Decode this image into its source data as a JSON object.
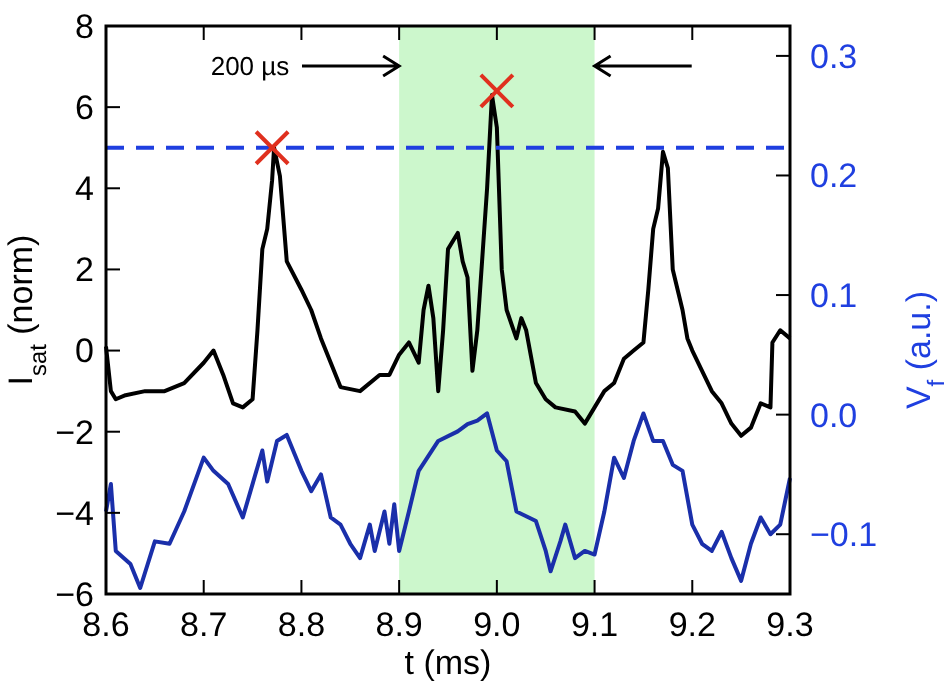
{
  "chart_data": {
    "type": "line",
    "xlabel": "t (ms)",
    "ylabel": "I$_{sat}$ (norm)",
    "y2label": "V$_{f}$ (a.u.)",
    "xlim": [
      8.6,
      9.3
    ],
    "xticks": [
      8.6,
      8.7,
      8.8,
      8.9,
      {
        "value": 9,
        "label": "9.0"
      },
      9.1,
      9.2,
      9.3
    ],
    "ylim": [
      -6,
      8
    ],
    "yticks": [
      {
        "value": -6,
        "label": "−6"
      },
      {
        "value": -4,
        "label": "−4"
      },
      {
        "value": -2,
        "label": "−2"
      },
      0,
      2,
      4,
      6,
      8
    ],
    "y2lim": [
      -0.15,
      0.325
    ],
    "y2ticks": [
      {
        "value": -0.1,
        "label": "−0.1"
      },
      {
        "value": 0,
        "label": "0.0"
      },
      0.1,
      0.2,
      0.3
    ],
    "grid": false,
    "line_style": "solid",
    "bands": [
      {
        "axis": "x",
        "from": 8.9,
        "to": 9.1,
        "color": "#ccf7cc"
      }
    ],
    "ref_lines": [
      {
        "axis": "y",
        "value": 5,
        "color": "#1f3fe0",
        "line_style": "dashed"
      }
    ],
    "annotations": [
      "200 µs"
    ],
    "series": [
      {
        "color": "#000000",
        "x": [
          8.6,
          8.605,
          8.61,
          8.62,
          8.64,
          8.66,
          8.68,
          8.7,
          8.71,
          8.72,
          8.73,
          8.74,
          8.75,
          8.755,
          8.76,
          8.765,
          8.77,
          8.772,
          8.778,
          8.785,
          8.8,
          8.81,
          8.82,
          8.83,
          8.84,
          8.86,
          8.88,
          8.89,
          8.9,
          8.91,
          8.92,
          8.925,
          8.93,
          8.935,
          8.94,
          8.945,
          8.95,
          8.96,
          8.965,
          8.97,
          8.975,
          8.98,
          8.99,
          8.995,
          9.0,
          9.005,
          9.01,
          9.02,
          9.025,
          9.03,
          9.04,
          9.05,
          9.06,
          9.08,
          9.09,
          9.1,
          9.11,
          9.12,
          9.13,
          9.14,
          9.15,
          9.155,
          9.16,
          9.165,
          9.17,
          9.175,
          9.18,
          9.19,
          9.195,
          9.2,
          9.21,
          9.22,
          9.23,
          9.24,
          9.25,
          9.26,
          9.27,
          9.28,
          9.282,
          9.29,
          9.3
        ],
        "values": [
          0.1,
          -1.0,
          -1.2,
          -1.1,
          -1.0,
          -1.0,
          -0.8,
          -0.3,
          0.0,
          -0.6,
          -1.3,
          -1.4,
          -1.2,
          0.5,
          2.5,
          3.0,
          4.2,
          5.0,
          4.3,
          2.2,
          1.5,
          1.0,
          0.3,
          -0.3,
          -0.9,
          -1.0,
          -0.6,
          -0.6,
          -0.1,
          0.2,
          -0.3,
          1.0,
          1.6,
          0.8,
          -1.0,
          0.5,
          2.5,
          2.9,
          2.2,
          1.8,
          -0.5,
          0.5,
          4.0,
          6.3,
          5.5,
          2.0,
          1.0,
          0.3,
          0.8,
          0.5,
          -0.8,
          -1.2,
          -1.4,
          -1.5,
          -1.8,
          -1.4,
          -1.0,
          -0.8,
          -0.2,
          0.0,
          0.2,
          1.5,
          3.0,
          3.5,
          4.9,
          4.5,
          2.0,
          1.0,
          0.3,
          0.0,
          -0.5,
          -1.0,
          -1.3,
          -1.8,
          -2.1,
          -1.9,
          -1.3,
          -1.4,
          0.2,
          0.5,
          0.3
        ]
      },
      {
        "color": "#1a2faa",
        "axis": "y2",
        "x": [
          8.6,
          8.605,
          8.61,
          8.625,
          8.635,
          8.65,
          8.665,
          8.68,
          8.7,
          8.71,
          8.725,
          8.74,
          8.76,
          8.765,
          8.775,
          8.785,
          8.8,
          8.81,
          8.82,
          8.83,
          8.84,
          8.85,
          8.86,
          8.87,
          8.875,
          8.885,
          8.89,
          8.895,
          8.9,
          8.91,
          8.92,
          8.94,
          8.96,
          8.97,
          8.98,
          8.99,
          9.0,
          9.01,
          9.02,
          9.04,
          9.05,
          9.055,
          9.065,
          9.07,
          9.08,
          9.09,
          9.1,
          9.11,
          9.12,
          9.13,
          9.14,
          9.15,
          9.16,
          9.17,
          9.18,
          9.19,
          9.2,
          9.21,
          9.22,
          9.23,
          9.24,
          9.25,
          9.26,
          9.27,
          9.28,
          9.29,
          9.3
        ],
        "values": [
          -0.081,
          -0.058,
          -0.114,
          -0.125,
          -0.145,
          -0.106,
          -0.108,
          -0.081,
          -0.036,
          -0.047,
          -0.058,
          -0.086,
          -0.03,
          -0.056,
          -0.022,
          -0.017,
          -0.047,
          -0.064,
          -0.05,
          -0.086,
          -0.092,
          -0.108,
          -0.12,
          -0.092,
          -0.114,
          -0.081,
          -0.108,
          -0.075,
          -0.114,
          -0.081,
          -0.047,
          -0.022,
          -0.014,
          -0.008,
          -0.005,
          0.001,
          -0.03,
          -0.039,
          -0.081,
          -0.089,
          -0.114,
          -0.131,
          -0.106,
          -0.092,
          -0.12,
          -0.114,
          -0.117,
          -0.081,
          -0.036,
          -0.053,
          -0.022,
          0.001,
          -0.022,
          -0.022,
          -0.042,
          -0.047,
          -0.092,
          -0.108,
          -0.114,
          -0.098,
          -0.12,
          -0.139,
          -0.108,
          -0.086,
          -0.1,
          -0.092,
          -0.053
        ]
      },
      {
        "type": "scatter",
        "color": "#e0301e",
        "marker": "cross",
        "x": [
          8.77,
          9.0
        ],
        "values": [
          5.0,
          6.4
        ]
      }
    ]
  }
}
